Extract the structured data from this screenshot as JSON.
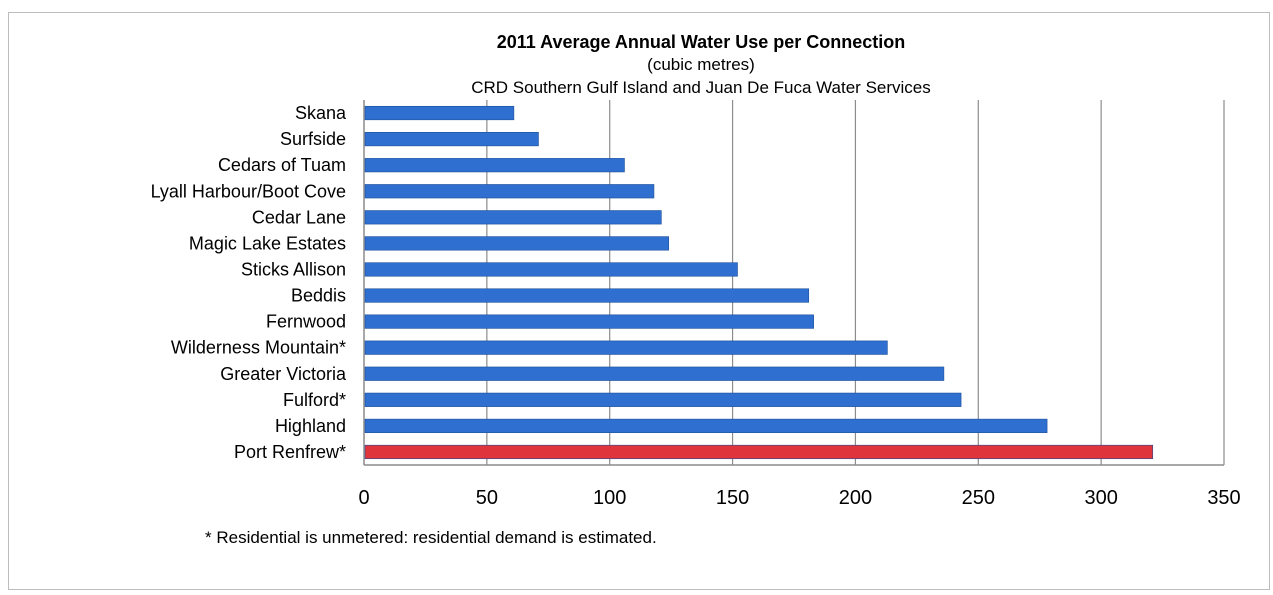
{
  "chart_data": {
    "type": "bar",
    "orientation": "horizontal",
    "title": "2011 Average Annual Water Use per Connection",
    "subtitle_lines": [
      "(cubic metres)",
      "CRD Southern Gulf Island and Juan De Fuca Water Services"
    ],
    "categories": [
      "Skana",
      "Surfside",
      "Cedars of Tuam",
      "Lyall Harbour/Boot Cove",
      "Cedar Lane",
      "Magic Lake Estates",
      "Sticks Allison",
      "Beddis",
      "Fernwood",
      "Wilderness Mountain*",
      "Greater Victoria",
      "Fulford*",
      "Highland",
      "Port Renfrew*"
    ],
    "values": [
      61,
      71,
      106,
      118,
      121,
      124,
      152,
      181,
      183,
      213,
      236,
      243,
      278,
      321
    ],
    "colors": [
      "#2e6fd0",
      "#2e6fd0",
      "#2e6fd0",
      "#2e6fd0",
      "#2e6fd0",
      "#2e6fd0",
      "#2e6fd0",
      "#2e6fd0",
      "#2e6fd0",
      "#2e6fd0",
      "#2e6fd0",
      "#2e6fd0",
      "#2e6fd0",
      "#e0343c"
    ],
    "xlim": [
      0,
      350
    ],
    "xticks": [
      0,
      50,
      100,
      150,
      200,
      250,
      300,
      350
    ],
    "xlabel": "",
    "ylabel": "",
    "grid": "vertical",
    "footnote": "* Residential is unmetered: residential demand is estimated."
  }
}
